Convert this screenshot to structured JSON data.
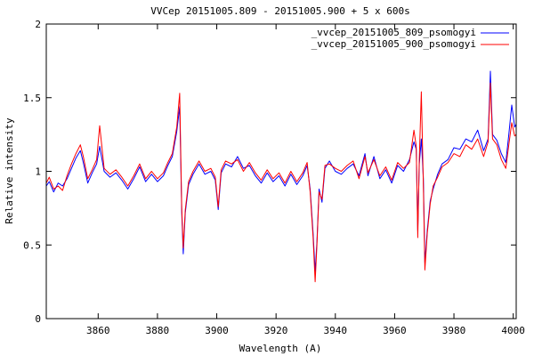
{
  "chart_data": {
    "type": "line",
    "title": "VVCep 20151005.809 - 20151005.900 + 5 x 600s",
    "xlabel": "Wavelength (A)",
    "ylabel": "Relative intensity",
    "xlim": [
      3842.5,
      4001
    ],
    "ylim": [
      0,
      2
    ],
    "grid": false,
    "legend_position": "top-right",
    "x_ticks": [
      3860,
      3880,
      3900,
      3920,
      3940,
      3960,
      3980,
      4000
    ],
    "x_tick_labels": [
      "3860",
      "3880",
      "3900",
      "3920",
      "3940",
      "3960",
      "3980",
      "4000"
    ],
    "y_ticks": [
      0,
      0.5,
      1,
      1.5,
      2
    ],
    "y_tick_labels": [
      "0",
      "0.5",
      "1",
      "1.5",
      "2"
    ],
    "series": [
      {
        "name": "_vvcep_20151005_809_psomogyi",
        "color": "#0000ff",
        "points": [
          [
            3842.5,
            0.9
          ],
          [
            3843.5,
            0.93
          ],
          [
            3845,
            0.86
          ],
          [
            3846.5,
            0.92
          ],
          [
            3848,
            0.9
          ],
          [
            3849.5,
            0.95
          ],
          [
            3851,
            1.02
          ],
          [
            3852.5,
            1.09
          ],
          [
            3854,
            1.14
          ],
          [
            3855,
            1.06
          ],
          [
            3856.5,
            0.92
          ],
          [
            3858,
            0.99
          ],
          [
            3859.5,
            1.05
          ],
          [
            3860.5,
            1.17
          ],
          [
            3862,
            1.0
          ],
          [
            3864,
            0.96
          ],
          [
            3866,
            0.99
          ],
          [
            3868,
            0.94
          ],
          [
            3870,
            0.88
          ],
          [
            3872,
            0.95
          ],
          [
            3874,
            1.03
          ],
          [
            3876,
            0.93
          ],
          [
            3878,
            0.98
          ],
          [
            3880,
            0.93
          ],
          [
            3882,
            0.97
          ],
          [
            3883.5,
            1.04
          ],
          [
            3885,
            1.1
          ],
          [
            3886.5,
            1.27
          ],
          [
            3887.5,
            1.44
          ],
          [
            3888.2,
            0.72
          ],
          [
            3888.7,
            0.44
          ],
          [
            3889.4,
            0.72
          ],
          [
            3890.5,
            0.91
          ],
          [
            3892,
            0.98
          ],
          [
            3894,
            1.05
          ],
          [
            3896,
            0.98
          ],
          [
            3898,
            1.0
          ],
          [
            3899.5,
            0.94
          ],
          [
            3900.5,
            0.74
          ],
          [
            3901.5,
            0.99
          ],
          [
            3903,
            1.05
          ],
          [
            3905,
            1.03
          ],
          [
            3907,
            1.1
          ],
          [
            3909,
            1.02
          ],
          [
            3911,
            1.04
          ],
          [
            3913,
            0.97
          ],
          [
            3915,
            0.92
          ],
          [
            3917,
            0.99
          ],
          [
            3919,
            0.93
          ],
          [
            3921,
            0.97
          ],
          [
            3923,
            0.9
          ],
          [
            3925,
            0.98
          ],
          [
            3927,
            0.91
          ],
          [
            3929,
            0.97
          ],
          [
            3930.5,
            1.04
          ],
          [
            3931.5,
            0.88
          ],
          [
            3932.5,
            0.58
          ],
          [
            3933.2,
            0.32
          ],
          [
            3933.8,
            0.52
          ],
          [
            3934.5,
            0.88
          ],
          [
            3935.5,
            0.79
          ],
          [
            3936.5,
            1.02
          ],
          [
            3938,
            1.07
          ],
          [
            3940,
            1.0
          ],
          [
            3942,
            0.98
          ],
          [
            3944,
            1.02
          ],
          [
            3946,
            1.05
          ],
          [
            3948,
            0.97
          ],
          [
            3950,
            1.12
          ],
          [
            3951,
            0.97
          ],
          [
            3953,
            1.1
          ],
          [
            3955,
            0.95
          ],
          [
            3957,
            1.01
          ],
          [
            3959,
            0.92
          ],
          [
            3961,
            1.04
          ],
          [
            3963,
            1.0
          ],
          [
            3965,
            1.08
          ],
          [
            3966.5,
            1.2
          ],
          [
            3967.3,
            1.15
          ],
          [
            3967.8,
            0.6
          ],
          [
            3968.3,
            1.05
          ],
          [
            3969,
            1.22
          ],
          [
            3969.7,
            0.95
          ],
          [
            3970.2,
            0.38
          ],
          [
            3971,
            0.6
          ],
          [
            3972,
            0.8
          ],
          [
            3973,
            0.88
          ],
          [
            3974.5,
            0.98
          ],
          [
            3976,
            1.05
          ],
          [
            3978,
            1.08
          ],
          [
            3980,
            1.16
          ],
          [
            3982,
            1.15
          ],
          [
            3984,
            1.22
          ],
          [
            3986,
            1.2
          ],
          [
            3988,
            1.28
          ],
          [
            3990,
            1.14
          ],
          [
            3991.5,
            1.22
          ],
          [
            3992.3,
            1.68
          ],
          [
            3993,
            1.25
          ],
          [
            3994.5,
            1.21
          ],
          [
            3996,
            1.12
          ],
          [
            3997.5,
            1.06
          ],
          [
            3998.5,
            1.25
          ],
          [
            3999.5,
            1.45
          ],
          [
            4000.5,
            1.3
          ],
          [
            4001,
            1.32
          ]
        ]
      },
      {
        "name": "_vvcep_20151005_900_psomogyi",
        "color": "#ff0000",
        "points": [
          [
            3842.5,
            0.92
          ],
          [
            3843.5,
            0.96
          ],
          [
            3845,
            0.88
          ],
          [
            3846.5,
            0.9
          ],
          [
            3848,
            0.87
          ],
          [
            3849.5,
            0.97
          ],
          [
            3851,
            1.05
          ],
          [
            3852.5,
            1.12
          ],
          [
            3854,
            1.18
          ],
          [
            3855,
            1.1
          ],
          [
            3856.5,
            0.95
          ],
          [
            3858,
            1.01
          ],
          [
            3859.5,
            1.08
          ],
          [
            3860.5,
            1.31
          ],
          [
            3862,
            1.02
          ],
          [
            3864,
            0.98
          ],
          [
            3866,
            1.01
          ],
          [
            3868,
            0.96
          ],
          [
            3870,
            0.9
          ],
          [
            3872,
            0.97
          ],
          [
            3874,
            1.05
          ],
          [
            3876,
            0.95
          ],
          [
            3878,
            1.0
          ],
          [
            3880,
            0.95
          ],
          [
            3882,
            0.99
          ],
          [
            3883.5,
            1.06
          ],
          [
            3885,
            1.12
          ],
          [
            3886.5,
            1.3
          ],
          [
            3887.5,
            1.53
          ],
          [
            3888.2,
            0.75
          ],
          [
            3888.7,
            0.48
          ],
          [
            3889.4,
            0.74
          ],
          [
            3890.5,
            0.93
          ],
          [
            3892,
            1.0
          ],
          [
            3894,
            1.07
          ],
          [
            3896,
            1.0
          ],
          [
            3898,
            1.02
          ],
          [
            3899.5,
            0.96
          ],
          [
            3900.5,
            0.76
          ],
          [
            3901.5,
            1.01
          ],
          [
            3903,
            1.07
          ],
          [
            3905,
            1.05
          ],
          [
            3907,
            1.08
          ],
          [
            3909,
            1.0
          ],
          [
            3911,
            1.06
          ],
          [
            3913,
            0.99
          ],
          [
            3915,
            0.94
          ],
          [
            3917,
            1.01
          ],
          [
            3919,
            0.95
          ],
          [
            3921,
            0.99
          ],
          [
            3923,
            0.92
          ],
          [
            3925,
            1.0
          ],
          [
            3927,
            0.93
          ],
          [
            3929,
            0.99
          ],
          [
            3930.5,
            1.06
          ],
          [
            3931.5,
            0.86
          ],
          [
            3932.5,
            0.55
          ],
          [
            3933.2,
            0.25
          ],
          [
            3933.8,
            0.5
          ],
          [
            3934.5,
            0.86
          ],
          [
            3935.5,
            0.81
          ],
          [
            3936.5,
            1.04
          ],
          [
            3938,
            1.05
          ],
          [
            3940,
            1.02
          ],
          [
            3942,
            1.0
          ],
          [
            3944,
            1.04
          ],
          [
            3946,
            1.07
          ],
          [
            3948,
            0.95
          ],
          [
            3950,
            1.1
          ],
          [
            3951,
            0.99
          ],
          [
            3953,
            1.08
          ],
          [
            3955,
            0.97
          ],
          [
            3957,
            1.03
          ],
          [
            3959,
            0.94
          ],
          [
            3961,
            1.06
          ],
          [
            3963,
            1.02
          ],
          [
            3965,
            1.06
          ],
          [
            3966.5,
            1.28
          ],
          [
            3967.3,
            1.17
          ],
          [
            3967.8,
            0.55
          ],
          [
            3968.3,
            1.08
          ],
          [
            3969,
            1.54
          ],
          [
            3969.7,
            0.9
          ],
          [
            3970.2,
            0.33
          ],
          [
            3971,
            0.58
          ],
          [
            3972,
            0.78
          ],
          [
            3973,
            0.9
          ],
          [
            3974.5,
            0.96
          ],
          [
            3976,
            1.03
          ],
          [
            3978,
            1.06
          ],
          [
            3980,
            1.12
          ],
          [
            3982,
            1.1
          ],
          [
            3984,
            1.18
          ],
          [
            3986,
            1.15
          ],
          [
            3988,
            1.22
          ],
          [
            3990,
            1.1
          ],
          [
            3991.5,
            1.2
          ],
          [
            3992.3,
            1.6
          ],
          [
            3993,
            1.22
          ],
          [
            3994.5,
            1.18
          ],
          [
            3996,
            1.08
          ],
          [
            3997.5,
            1.02
          ],
          [
            3998.5,
            1.18
          ],
          [
            3999.5,
            1.33
          ],
          [
            4000.5,
            1.24
          ],
          [
            4001,
            1.25
          ]
        ]
      }
    ]
  }
}
